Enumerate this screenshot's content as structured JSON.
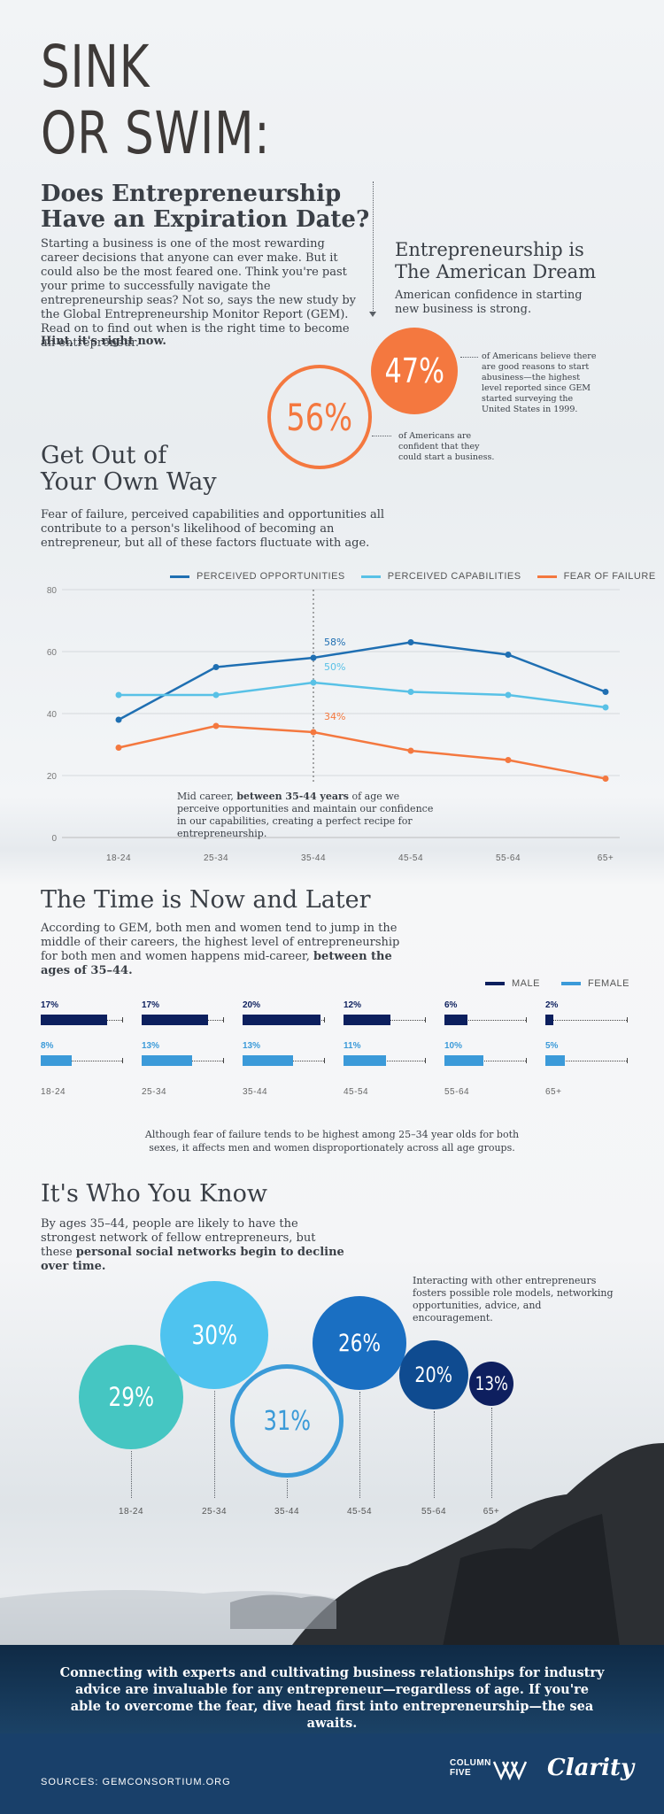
{
  "header": {
    "title_line1": "SINK",
    "title_line2": "OR SWIM:",
    "subtitle_line1": "Does Entrepreneurship",
    "subtitle_line2": "Have an Expiration Date?",
    "intro": "Starting a business is one of the most rewarding career decisions that anyone can ever make. But it could also be the most feared one. Think you're past your prime to successfully navigate the entrepreneurship seas? Not so, says the new study by the Global Entrepreneurship Monitor Report (GEM). Read on to find out when is the right time to become an entrepreneur.",
    "hint": "Hint, it's right now."
  },
  "dream": {
    "title_line1": "Entrepreneurship is",
    "title_line2": "The American Dream",
    "subtitle": "American confidence in starting new business is strong.",
    "stat1_value": "47%",
    "stat1_text": "of Americans believe there are good reasons to start abusiness—the highest level reported since GEM started surveying the United States in 1999.",
    "stat2_value": "56%",
    "stat2_text": "of Americans are confident that they could start a business.",
    "colors": {
      "solid": "#f4783f",
      "outline": "#f4783f"
    }
  },
  "section1": {
    "title_line1": "Get Out of",
    "title_line2": "Your Own Way",
    "text": "Fear of failure, perceived capabilities and opportunities all contribute to a person's likelihood of becoming an entrepreneur, but all of these factors fluctuate with age.",
    "annotation_prefix": "Mid career, ",
    "annotation_bold": "between 35-44 years",
    "annotation_suffix": " of age we perceive opportunities and maintain our confidence in our capabilities, creating a perfect recipe for entrepreneurship."
  },
  "section2": {
    "title": "The Time is Now and Later",
    "text_prefix": "According to GEM, both men and women tend to jump in the middle of their careers, the highest level of entrepreneurship for both men and women happens mid-career, ",
    "text_bold": "between the ages of 35–44.",
    "note": "Although fear of failure tends to be highest among 25–34 year olds for both sexes, it affects men and women disproportionately across all age groups."
  },
  "section3": {
    "title": "It's Who You Know",
    "text_prefix": "By ages 35–44, people are likely to have the strongest network of fellow entrepreneurs, but these ",
    "text_bold": "personal social networks begin to decline over time.",
    "side_note": "Interacting with other entrepreneurs fosters possible role models, networking opportunities, advice, and encouragement."
  },
  "footer": {
    "message": "Connecting with experts and cultivating business relationships for industry advice are invaluable for any entrepreneur—regardless of age. If you're able to overcome the fear, dive head first into entrepreneurship—the sea awaits.",
    "sources": "SOURCES: GEMCONSORTIUM.ORG",
    "logo1_line1": "COLUMN",
    "logo1_line2": "FIVE",
    "logo2": "Clarity"
  },
  "chart_data": [
    {
      "type": "line",
      "categories": [
        "18-24",
        "25-34",
        "35-44",
        "45-54",
        "55-64",
        "65+"
      ],
      "ylim": [
        0,
        80
      ],
      "yticks": [
        "0",
        "20",
        "40",
        "60",
        "80"
      ],
      "legend_position": "top-right",
      "grid": true,
      "series": [
        {
          "name": "PERCEIVED OPPORTUNITIES",
          "values": [
            38,
            55,
            58,
            63,
            59,
            47
          ],
          "color": "#1f6fb2",
          "label_at": 2,
          "label": "58%"
        },
        {
          "name": "PERCEIVED CAPABILITIES",
          "values": [
            46,
            46,
            50,
            47,
            46,
            42
          ],
          "color": "#58c1e6",
          "label_at": 2,
          "label": "50%"
        },
        {
          "name": "FEAR OF FAILURE",
          "values": [
            29,
            36,
            34,
            28,
            25,
            19
          ],
          "color": "#f4783f",
          "label_at": 2,
          "label": "34%"
        }
      ]
    },
    {
      "type": "bar",
      "categories": [
        "18-24",
        "25-34",
        "35-44",
        "45-54",
        "55-64",
        "65+"
      ],
      "legend_position": "top-right",
      "series": [
        {
          "name": "MALE",
          "values": [
            17,
            17,
            20,
            12,
            6,
            2
          ],
          "labels": [
            "17%",
            "17%",
            "20%",
            "12%",
            "6%",
            "2%"
          ],
          "color": "#0c1f5e"
        },
        {
          "name": "FEMALE",
          "values": [
            8,
            13,
            13,
            11,
            10,
            5
          ],
          "labels": [
            "8%",
            "13%",
            "13%",
            "11%",
            "10%",
            "5%"
          ],
          "color": "#3b9ad9"
        }
      ],
      "scale_max": 20
    },
    {
      "type": "scatter",
      "categories": [
        "18-24",
        "25-34",
        "35-44",
        "45-54",
        "55-64",
        "65+"
      ],
      "values": [
        29,
        30,
        31,
        26,
        20,
        13
      ],
      "labels": [
        "29%",
        "30%",
        "31%",
        "26%",
        "20%",
        "13%"
      ],
      "colors": [
        "#45c6c2",
        "#4ec3ef",
        "#3a9ad8",
        "#1a6fc2",
        "#0f4b90",
        "#0e1f5f"
      ],
      "outlined": [
        false,
        false,
        true,
        false,
        false,
        false
      ]
    }
  ]
}
